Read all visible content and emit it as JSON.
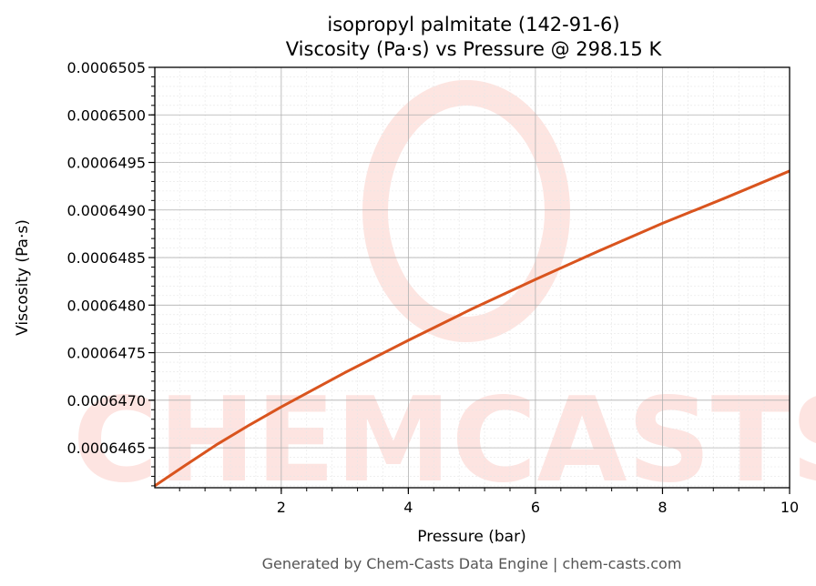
{
  "chart_data": {
    "type": "line",
    "title_line1": "isopropyl palmitate (142-91-6)",
    "title_line2": "Viscosity (Pa·s) vs Pressure @ 298.15 K",
    "xlabel": "Pressure (bar)",
    "ylabel": "Viscosity (Pa·s)",
    "xlim": [
      0.01,
      10
    ],
    "ylim": [
      0.00064608,
      0.0006505
    ],
    "x_ticks": [
      2,
      4,
      6,
      8,
      10
    ],
    "x_tick_labels": [
      "2",
      "4",
      "6",
      "8",
      "10"
    ],
    "y_ticks": [
      0.0006465,
      0.000647,
      0.0006475,
      0.000648,
      0.0006485,
      0.000649,
      0.0006495,
      0.00065,
      0.0006505
    ],
    "y_tick_labels": [
      "0.0006465",
      "0.0006470",
      "0.0006475",
      "0.0006480",
      "0.0006485",
      "0.0006490",
      "0.0006495",
      "0.0006500",
      "0.0006505"
    ],
    "grid": true,
    "series": [
      {
        "color": "#d9541e",
        "x": [
          0.01,
          0.5,
          1,
          1.5,
          2,
          3,
          4,
          5,
          6,
          7,
          8,
          9,
          10
        ],
        "y": [
          0.0006461,
          0.00064632,
          0.00064654,
          0.00064674,
          0.00064693,
          0.00064729,
          0.00064763,
          0.00064796,
          0.00064827,
          0.00064857,
          0.00064886,
          0.00064913,
          0.00064941
        ]
      }
    ]
  },
  "watermark": {
    "text": "CHEMCASTS",
    "color": "#fde0dc"
  },
  "footer": "Generated by Chem-Casts Data Engine | chem-casts.com"
}
